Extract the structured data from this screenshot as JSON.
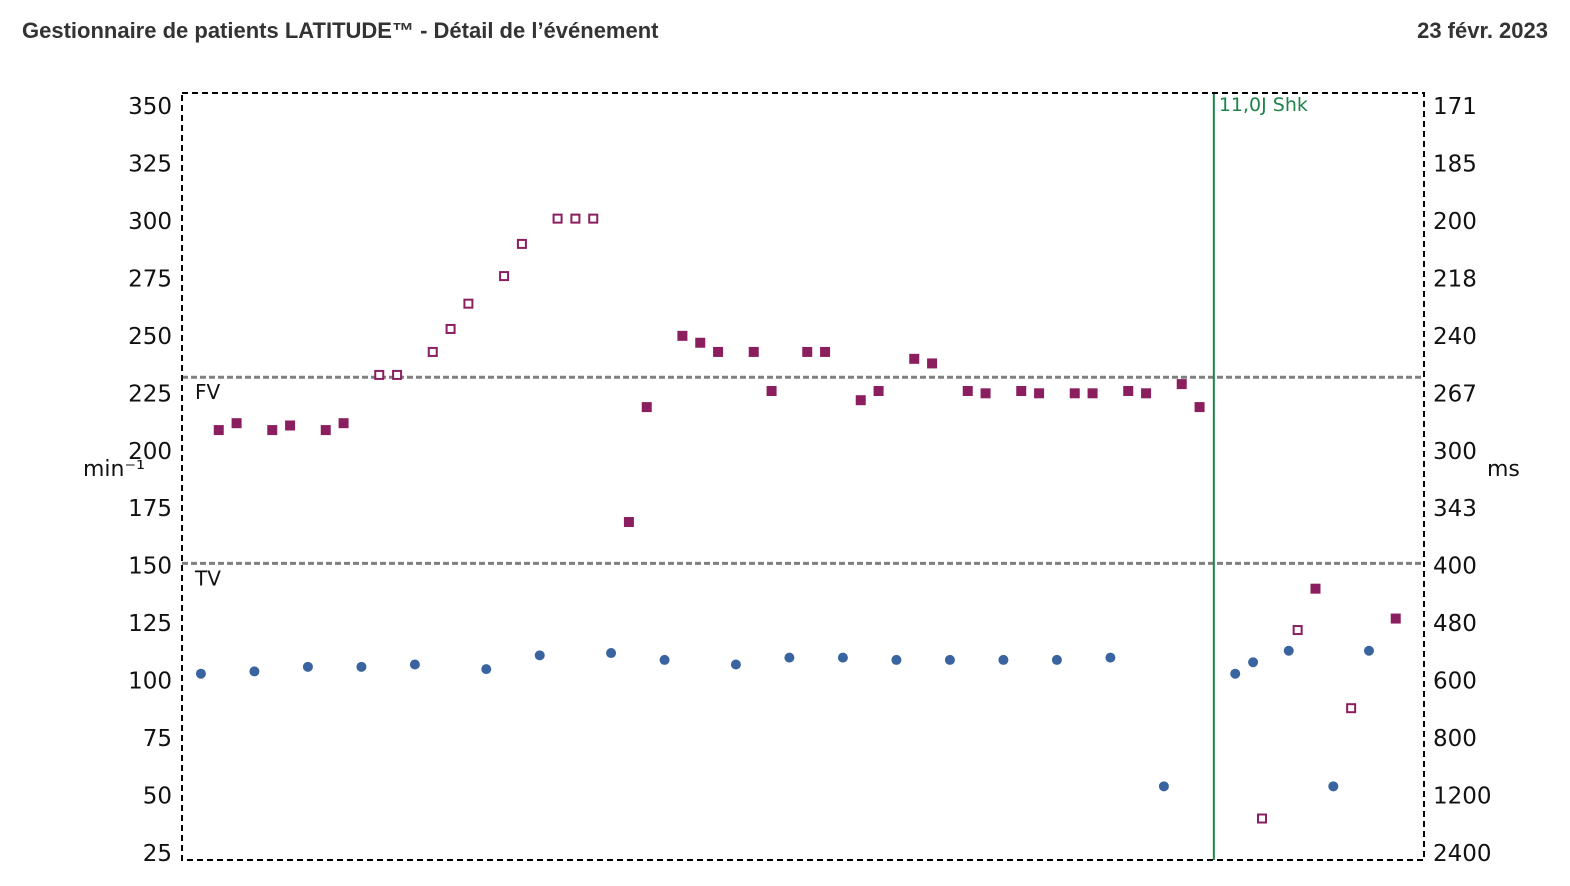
{
  "header": {
    "title": "Gestionnaire de patients LATITUDE™ - Détail de l’événement",
    "date": "23 févr. 2023"
  },
  "chart_data": {
    "type": "scatter",
    "y_axis_left": {
      "label": "min⁻¹",
      "ticks": [
        350,
        325,
        300,
        275,
        250,
        225,
        200,
        175,
        150,
        125,
        100,
        75,
        50,
        25
      ],
      "range": [
        25,
        350
      ]
    },
    "y_axis_right": {
      "label": "ms",
      "ticks": [
        "171",
        "185",
        "200",
        "218",
        "240",
        "267",
        "300",
        "343",
        "400",
        "480",
        "600",
        "800",
        "1200",
        "2400"
      ]
    },
    "zones": [
      {
        "name": "FV",
        "threshold": 232
      },
      {
        "name": "TV",
        "threshold": 151
      }
    ],
    "event_marker": {
      "label": "11,0J Shk",
      "x": 57.3,
      "color": "#1e8449"
    },
    "x_range": [
      0,
      68.3
    ],
    "colors": {
      "ventricular": "#8b1e5f",
      "atrial": "#3a64a0",
      "threshold": "#808080",
      "shock": "#1e8449"
    },
    "series": [
      {
        "marker": "filled-square",
        "points": [
          [
            1.5,
            209
          ],
          [
            2.5,
            212
          ],
          [
            4.5,
            209
          ],
          [
            5.5,
            211
          ],
          [
            7.5,
            209
          ],
          [
            8.5,
            212
          ],
          [
            24.5,
            169
          ],
          [
            25.5,
            219
          ],
          [
            27.5,
            250
          ],
          [
            28.5,
            247
          ],
          [
            29.5,
            243
          ],
          [
            31.5,
            243
          ],
          [
            32.5,
            226
          ],
          [
            34.5,
            243
          ],
          [
            35.5,
            243
          ],
          [
            37.5,
            222
          ],
          [
            38.5,
            226
          ],
          [
            40.5,
            240
          ],
          [
            41.5,
            238
          ],
          [
            43.5,
            226
          ],
          [
            44.5,
            225
          ],
          [
            46.5,
            226
          ],
          [
            47.5,
            225
          ],
          [
            49.5,
            225
          ],
          [
            50.5,
            225
          ],
          [
            52.5,
            226
          ],
          [
            53.5,
            225
          ],
          [
            55.5,
            229
          ],
          [
            56.5,
            219
          ],
          [
            63,
            140
          ],
          [
            67.5,
            127
          ]
        ]
      },
      {
        "marker": "hollow-square",
        "points": [
          [
            10.5,
            233
          ],
          [
            11.5,
            233
          ],
          [
            13.5,
            243
          ],
          [
            14.5,
            253
          ],
          [
            15.5,
            264
          ],
          [
            17.5,
            276
          ],
          [
            18.5,
            290
          ],
          [
            20.5,
            301
          ],
          [
            21.5,
            301
          ],
          [
            22.5,
            301
          ],
          [
            60,
            40
          ],
          [
            62,
            122
          ],
          [
            65,
            88
          ]
        ]
      },
      {
        "marker": "filled-circle",
        "points": [
          [
            0.5,
            103
          ],
          [
            3.5,
            104
          ],
          [
            6.5,
            106
          ],
          [
            9.5,
            106
          ],
          [
            12.5,
            107
          ],
          [
            16.5,
            105
          ],
          [
            19.5,
            111
          ],
          [
            23.5,
            112
          ],
          [
            26.5,
            109
          ],
          [
            30.5,
            107
          ],
          [
            33.5,
            110
          ],
          [
            36.5,
            110
          ],
          [
            39.5,
            109
          ],
          [
            42.5,
            109
          ],
          [
            45.5,
            109
          ],
          [
            48.5,
            109
          ],
          [
            51.5,
            110
          ],
          [
            54.5,
            54
          ],
          [
            58.5,
            103
          ],
          [
            59.5,
            108
          ],
          [
            61.5,
            113
          ],
          [
            64,
            54
          ],
          [
            66,
            113
          ]
        ]
      }
    ]
  }
}
